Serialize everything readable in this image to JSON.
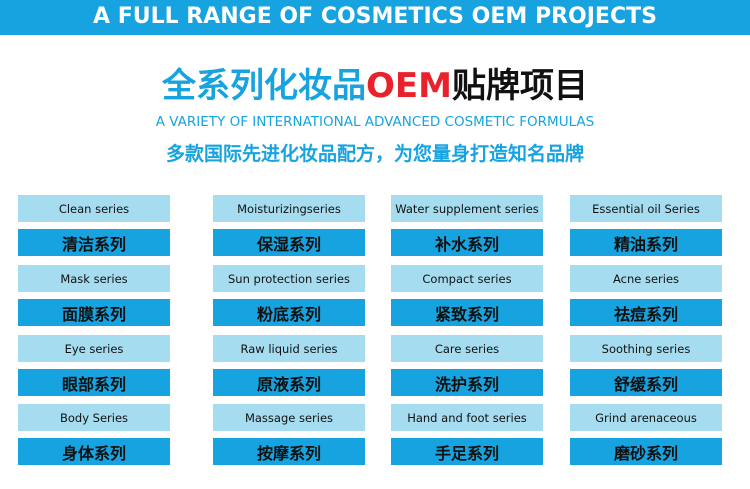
{
  "header": {
    "title": "A FULL RANGE OF COSMETICS OEM PROJECTS"
  },
  "heading": {
    "parts": [
      "全系列化妆品",
      "OEM",
      "贴牌项目"
    ]
  },
  "subtitle_en": "A VARIETY OF INTERNATIONAL ADVANCED COSMETIC FORMULAS",
  "subtitle_zh": "多款国际先进化妆品配方，为您量身打造知名品牌",
  "grid": {
    "rows": [
      [
        {
          "en": "Clean series",
          "zh": "清洁系列"
        },
        {
          "en": "Moisturizingseries",
          "zh": "保湿系列"
        },
        {
          "en": "Water supplement series",
          "zh": "补水系列"
        },
        {
          "en": "Essential oil Series",
          "zh": "精油系列"
        }
      ],
      [
        {
          "en": "Mask series",
          "zh": "面膜系列"
        },
        {
          "en": "Sun protection series",
          "zh": "粉底系列"
        },
        {
          "en": "Compact series",
          "zh": "紧致系列"
        },
        {
          "en": "Acne series",
          "zh": "祛痘系列"
        }
      ],
      [
        {
          "en": "Eye series",
          "zh": "眼部系列"
        },
        {
          "en": "Raw liquid series",
          "zh": "原液系列"
        },
        {
          "en": "Care series",
          "zh": "洗护系列"
        },
        {
          "en": "Soothing series",
          "zh": "舒缓系列"
        }
      ],
      [
        {
          "en": "Body Series",
          "zh": "身体系列"
        },
        {
          "en": "Massage series",
          "zh": "按摩系列"
        },
        {
          "en": "Hand and foot series",
          "zh": "手足系列"
        },
        {
          "en": "Grind arenaceous",
          "zh": "磨砂系列"
        }
      ]
    ]
  }
}
